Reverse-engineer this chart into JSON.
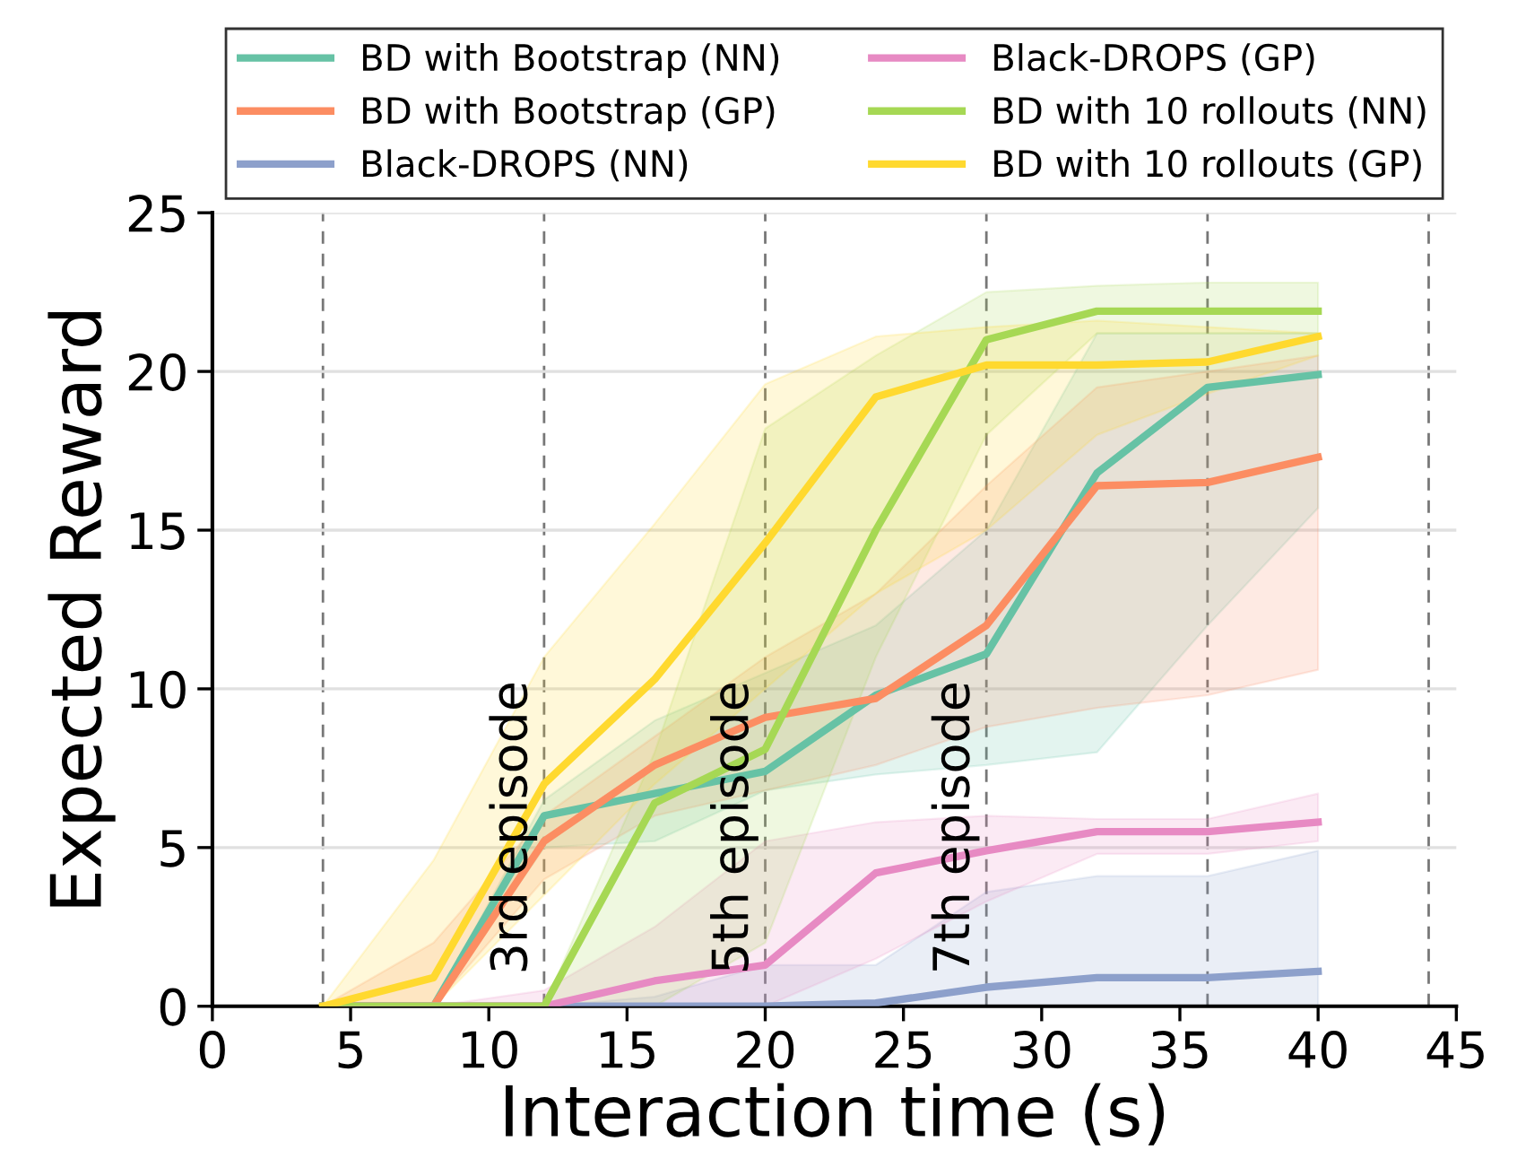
{
  "chart_data": {
    "type": "line",
    "xlabel": "Interaction time (s)",
    "ylabel": "Expected Reward",
    "xlim": [
      0,
      45
    ],
    "ylim": [
      0,
      25
    ],
    "xticks": [
      0,
      5,
      10,
      15,
      20,
      25,
      30,
      35,
      40,
      45
    ],
    "yticks": [
      0,
      5,
      10,
      15,
      20,
      25
    ],
    "grid": "y",
    "legend": "top",
    "marker": "none",
    "line_style": "solid",
    "x": [
      4,
      8,
      12,
      16,
      20,
      24,
      28,
      32,
      36,
      40
    ],
    "series": [
      {
        "name": "BD with Bootstrap (NN)",
        "color": "#66c2a5",
        "values": [
          0,
          0,
          6.0,
          6.7,
          7.4,
          9.8,
          11.1,
          16.8,
          19.5,
          19.9
        ],
        "lower": [
          0,
          0,
          5.0,
          5.2,
          6.8,
          7.3,
          7.6,
          8.0,
          12.0,
          15.7
        ],
        "upper": [
          0,
          0,
          6.5,
          9.0,
          10.5,
          12.0,
          15.0,
          21.2,
          21.2,
          21.2
        ]
      },
      {
        "name": "BD with Bootstrap (GP)",
        "color": "#fc8d62",
        "values": [
          0,
          0,
          5.2,
          7.6,
          9.1,
          9.7,
          12.0,
          16.4,
          16.5,
          17.3
        ],
        "lower": [
          0,
          0,
          4.0,
          6.0,
          6.8,
          7.6,
          8.8,
          9.4,
          9.8,
          10.6
        ],
        "upper": [
          0,
          2.0,
          6.0,
          8.5,
          11.0,
          13.0,
          16.4,
          19.5,
          20.0,
          20.5
        ]
      },
      {
        "name": "Black-DROPS (NN)",
        "color": "#8da0cb",
        "values": [
          0,
          0,
          0,
          0,
          0,
          0.1,
          0.6,
          0.9,
          0.9,
          1.1
        ],
        "lower": [
          0,
          0,
          0,
          0,
          0,
          0,
          0,
          0,
          0,
          0
        ],
        "upper": [
          0,
          0,
          0,
          0.3,
          1.3,
          1.3,
          3.6,
          4.1,
          4.1,
          4.9
        ]
      },
      {
        "name": "Black-DROPS (GP)",
        "color": "#e78ac3",
        "values": [
          0,
          0,
          0,
          0.8,
          1.3,
          4.2,
          4.9,
          5.5,
          5.5,
          5.8
        ],
        "lower": [
          0,
          0,
          0,
          0,
          0,
          1.5,
          3.3,
          4.8,
          4.8,
          5.2
        ],
        "upper": [
          0,
          0,
          0.5,
          2.5,
          5.2,
          5.8,
          6.0,
          5.9,
          5.9,
          6.7
        ]
      },
      {
        "name": "BD with 10 rollouts (NN)",
        "color": "#a6d854",
        "values": [
          0,
          0,
          0,
          6.4,
          8.1,
          15.0,
          21.0,
          21.9,
          21.9,
          21.9
        ],
        "lower": [
          0,
          0,
          0,
          0,
          2.0,
          11.0,
          18.0,
          21.2,
          21.2,
          21.2
        ],
        "upper": [
          0,
          0,
          0,
          8.0,
          18.2,
          20.5,
          22.5,
          22.7,
          22.8,
          22.8
        ]
      },
      {
        "name": "BD with 10 rollouts (GP)",
        "color": "#ffd92f",
        "values": [
          0,
          0.9,
          7.0,
          10.3,
          14.6,
          19.2,
          20.2,
          20.2,
          20.3,
          21.1
        ],
        "lower": [
          0,
          0,
          3.5,
          7.0,
          10.0,
          13.0,
          15.0,
          18.0,
          19.3,
          20.5
        ],
        "upper": [
          0,
          4.6,
          11.0,
          15.2,
          19.6,
          21.1,
          21.4,
          21.6,
          21.4,
          21.2
        ]
      }
    ],
    "ref_lines": [
      {
        "axis": "x",
        "value": 4,
        "label": null,
        "color": "#777777",
        "line_style": "dashed"
      },
      {
        "axis": "x",
        "value": 12,
        "label": "3rd episode",
        "color": "#777777",
        "line_style": "dashed"
      },
      {
        "axis": "x",
        "value": 20,
        "label": "5th episode",
        "color": "#777777",
        "line_style": "dashed"
      },
      {
        "axis": "x",
        "value": 28,
        "label": "7th episode",
        "color": "#777777",
        "line_style": "dashed"
      },
      {
        "axis": "x",
        "value": 36,
        "label": null,
        "color": "#777777",
        "line_style": "dashed"
      },
      {
        "axis": "x",
        "value": 44,
        "label": null,
        "color": "#777777",
        "line_style": "dashed"
      }
    ]
  }
}
